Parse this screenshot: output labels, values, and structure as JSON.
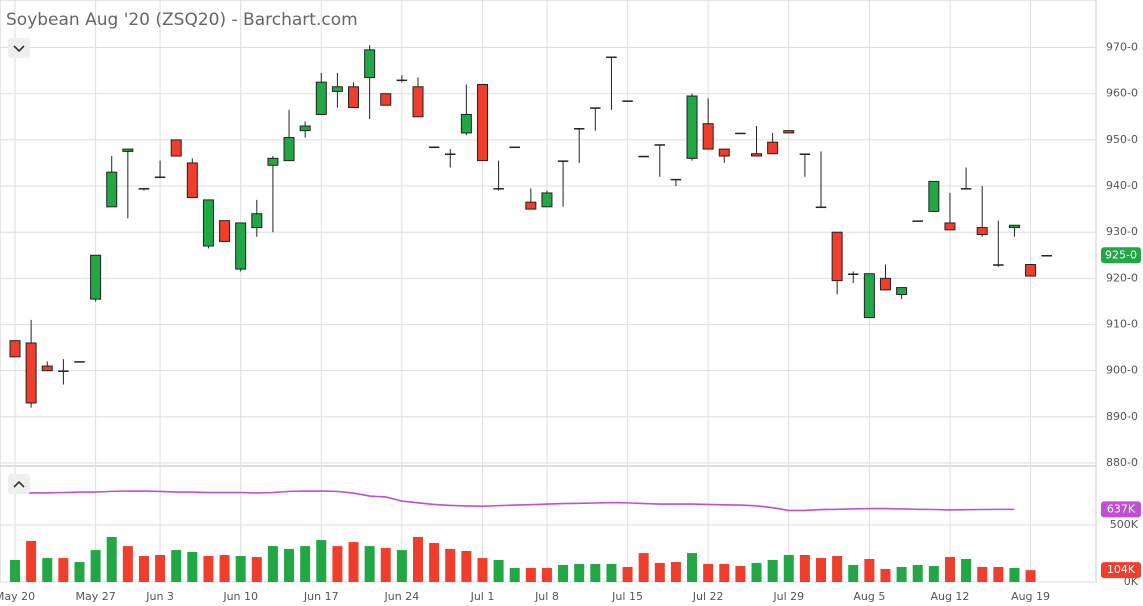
{
  "chart_data": [
    {
      "type": "candlestick",
      "title": "Soybean Aug '20 (ZSQ20) - Barchart.com",
      "categories": [
        "May 20",
        null,
        null,
        null,
        null,
        "May 27",
        null,
        null,
        null,
        "Jun 3",
        null,
        null,
        null,
        null,
        "Jun 10",
        null,
        null,
        null,
        null,
        "Jun 17",
        null,
        null,
        null,
        null,
        "Jun 24",
        null,
        null,
        null,
        null,
        "Jul 1",
        null,
        null,
        null,
        "Jul 8",
        null,
        null,
        null,
        null,
        "Jul 15",
        null,
        null,
        null,
        null,
        "Jul 22",
        null,
        null,
        null,
        null,
        "Jul 29",
        null,
        null,
        null,
        null,
        "Aug 5",
        null,
        null,
        null,
        null,
        "Aug 12",
        null,
        null,
        null,
        null,
        "Aug 19",
        null
      ],
      "open": [
        906.5,
        906,
        901,
        900,
        902,
        915.5,
        935.5,
        947.5,
        939.5,
        942,
        950,
        945,
        927,
        932.5,
        922,
        931,
        944.5,
        945.5,
        952,
        955.5,
        960.5,
        961.5,
        963.5,
        960,
        963,
        961.5,
        948.5,
        947,
        951.5,
        962,
        939.5,
        948.5,
        936.5,
        935.5,
        945.5,
        952.5,
        957,
        968,
        958.5,
        946.5,
        949,
        941.5,
        946,
        953.5,
        948,
        951.5,
        947,
        949.5,
        952,
        947,
        935.5,
        930,
        921,
        911.5,
        920,
        916.5,
        932.5,
        934.5,
        932,
        939.5,
        931,
        923,
        931,
        923,
        925
      ],
      "high": [
        906.5,
        911,
        902,
        902.5,
        902,
        925,
        946.5,
        948,
        939.5,
        945.5,
        950,
        946,
        937,
        932.5,
        932,
        937,
        946.5,
        956.5,
        954,
        964.5,
        964.5,
        962.5,
        970.5,
        960,
        964,
        963.5,
        948.5,
        948,
        962,
        962,
        945.5,
        948.5,
        939.5,
        939,
        945.5,
        952.5,
        957,
        968,
        958.5,
        946.5,
        949,
        941.5,
        960,
        959,
        948,
        951.5,
        953,
        951.5,
        952,
        947,
        947.5,
        930,
        921.5,
        921,
        923,
        918,
        932.5,
        941,
        938.5,
        944,
        940,
        932.5,
        931.5,
        923,
        925
      ],
      "low": [
        903,
        892,
        900,
        897,
        901.8,
        915,
        935.5,
        933,
        939,
        942,
        946.5,
        937.5,
        926.5,
        928,
        921.5,
        929,
        930,
        945.5,
        950.5,
        955.5,
        957,
        957,
        954.5,
        957.5,
        962.5,
        955,
        948.5,
        944,
        951,
        945.5,
        939,
        948.5,
        935,
        935.5,
        935.5,
        945,
        952,
        956.5,
        958.5,
        946.5,
        942,
        940,
        945.5,
        948,
        945,
        951.5,
        946.5,
        947,
        951.5,
        942,
        935.5,
        916.5,
        919,
        911.5,
        917.5,
        915.5,
        932.5,
        934.5,
        930.5,
        939.5,
        929,
        922.5,
        929,
        920.5,
        925
      ],
      "close": [
        903,
        893,
        900,
        900,
        902,
        925,
        943,
        948,
        939.5,
        942,
        946.5,
        937.5,
        937,
        928,
        932,
        934,
        946,
        950.5,
        953,
        962.5,
        961.5,
        957,
        969.5,
        957.5,
        963,
        955,
        948.5,
        947,
        955.5,
        945.5,
        939.5,
        948.5,
        935,
        938.5,
        945.5,
        952.5,
        957,
        968,
        958.5,
        946.5,
        949,
        941.5,
        959.5,
        948,
        946.5,
        951.5,
        946.5,
        947,
        951.5,
        947,
        935.5,
        919.5,
        921,
        921,
        917.5,
        918,
        932.5,
        941,
        930.5,
        939.5,
        929.5,
        923,
        931.5,
        920.5,
        925
      ],
      "up_color": "#21a744",
      "down_color": "#ef3e2b",
      "ylim": [
        880,
        979
      ],
      "yticks": [
        {
          "value": 880,
          "label": "880-0"
        },
        {
          "value": 890,
          "label": "890-0"
        },
        {
          "value": 900,
          "label": "900-0"
        },
        {
          "value": 910,
          "label": "910-0"
        },
        {
          "value": 920,
          "label": "920-0"
        },
        {
          "value": 930,
          "label": "930-0"
        },
        {
          "value": 940,
          "label": "940-0"
        },
        {
          "value": 950,
          "label": "950-0"
        },
        {
          "value": 960,
          "label": "960-0"
        },
        {
          "value": 970,
          "label": "970-0"
        }
      ],
      "last": {
        "value": 925,
        "label": "925-0",
        "color": "#21a744"
      },
      "grid": true
    },
    {
      "type": "bar",
      "volume": {
        "values": [
          193,
          360,
          210,
          210,
          175,
          280,
          395,
          315,
          228,
          237,
          280,
          263,
          228,
          237,
          228,
          219,
          315,
          290,
          315,
          368,
          315,
          350,
          315,
          298,
          280,
          395,
          342,
          290,
          272,
          210,
          193,
          123,
          123,
          123,
          149,
          158,
          158,
          158,
          132,
          254,
          167,
          175,
          254,
          158,
          158,
          140,
          167,
          193,
          237,
          237,
          210,
          228,
          149,
          202,
          114,
          132,
          149,
          140,
          219,
          202,
          132,
          132,
          123,
          104,
          null
        ],
        "colors": [
          "#21a744",
          "#ef3e2b",
          "#21a744",
          "#ef3e2b",
          "#21a744",
          "#21a744",
          "#21a744",
          "#ef3e2b",
          "#ef3e2b",
          "#ef3e2b",
          "#21a744",
          "#21a744",
          "#ef3e2b",
          "#ef3e2b",
          "#21a744",
          "#ef3e2b",
          "#21a744",
          "#21a744",
          "#21a744",
          "#21a744",
          "#ef3e2b",
          "#ef3e2b",
          "#21a744",
          "#ef3e2b",
          "#21a744",
          "#ef3e2b",
          "#ef3e2b",
          "#ef3e2b",
          "#ef3e2b",
          "#ef3e2b",
          "#21a744",
          "#21a744",
          "#ef3e2b",
          "#ef3e2b",
          "#21a744",
          "#21a744",
          "#21a744",
          "#21a744",
          "#ef3e2b",
          "#ef3e2b",
          "#ef3e2b",
          "#ef3e2b",
          "#21a744",
          "#ef3e2b",
          "#ef3e2b",
          "#ef3e2b",
          "#21a744",
          "#21a744",
          "#21a744",
          "#ef3e2b",
          "#ef3e2b",
          "#ef3e2b",
          "#21a744",
          "#ef3e2b",
          "#ef3e2b",
          "#21a744",
          "#21a744",
          "#21a744",
          "#ef3e2b",
          "#21a744",
          "#ef3e2b",
          "#ef3e2b",
          "#21a744",
          "#ef3e2b",
          null
        ],
        "last": {
          "value": 104,
          "label": "104K",
          "color": "#ef3e2b"
        }
      },
      "open_interest": {
        "type": "line",
        "color": "#c04fd6",
        "values": [
          781,
          781,
          781,
          785,
          789,
          789,
          795,
          798,
          798,
          794,
          789,
          789,
          785,
          785,
          785,
          781,
          785,
          795,
          798,
          798,
          795,
          780,
          754,
          746,
          710,
          695,
          680,
          672,
          667,
          665,
          670,
          675,
          678,
          684,
          688,
          690,
          693,
          697,
          694,
          688,
          684,
          684,
          684,
          680,
          677,
          675,
          668,
          652,
          628,
          628,
          635,
          638,
          641,
          644,
          644,
          641,
          638,
          636,
          632,
          634,
          636,
          637,
          637,
          null,
          null
        ],
        "last": {
          "value": 637,
          "label": "637K"
        }
      },
      "ylim": [
        0,
        1000
      ],
      "yticks": [
        {
          "value": 0,
          "label": "0K"
        },
        {
          "value": 500,
          "label": "500K"
        }
      ],
      "grid": true
    }
  ]
}
